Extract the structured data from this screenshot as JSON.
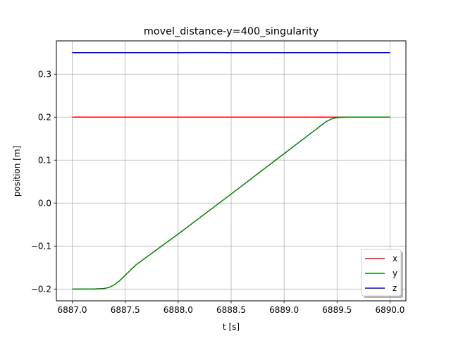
{
  "chart_data": {
    "type": "line",
    "title": "movel_distance-y=400_singularity",
    "xlabel": "t [s]",
    "ylabel": "position [m]",
    "xlim": [
      6886.85,
      6890.15
    ],
    "ylim": [
      -0.2275,
      0.3775
    ],
    "xticks": [
      6887.0,
      6887.5,
      6888.0,
      6888.5,
      6889.0,
      6889.5,
      6890.0
    ],
    "xtick_labels": [
      "6887.0",
      "6887.5",
      "6888.0",
      "6888.5",
      "6889.0",
      "6889.5",
      "6890.0"
    ],
    "yticks": [
      -0.2,
      -0.1,
      0.0,
      0.1,
      0.2,
      0.3
    ],
    "ytick_labels": [
      "−0.2",
      "−0.1",
      "0.0",
      "0.1",
      "0.2",
      "0.3"
    ],
    "grid": true,
    "legend_position": "lower right",
    "series": [
      {
        "name": "x",
        "color": "#ff0000",
        "x": [
          6887.0,
          6887.5,
          6888.0,
          6888.5,
          6889.0,
          6889.5,
          6890.0
        ],
        "y": [
          0.2,
          0.2,
          0.2,
          0.2,
          0.2,
          0.2,
          0.2
        ]
      },
      {
        "name": "y",
        "color": "#008000",
        "x": [
          6887.0,
          6887.2,
          6887.3,
          6887.35,
          6887.4,
          6887.45,
          6887.5,
          6887.55,
          6887.6,
          6888.0,
          6888.5,
          6889.0,
          6889.25,
          6889.3,
          6889.35,
          6889.4,
          6889.45,
          6889.5,
          6889.6,
          6890.0
        ],
        "y": [
          -0.2,
          -0.2,
          -0.199,
          -0.196,
          -0.19,
          -0.18,
          -0.168,
          -0.156,
          -0.144,
          -0.072,
          0.021,
          0.115,
          0.162,
          0.171,
          0.181,
          0.19,
          0.196,
          0.199,
          0.2,
          0.2
        ]
      },
      {
        "name": "z",
        "color": "#0000ff",
        "x": [
          6887.0,
          6887.5,
          6888.0,
          6888.25,
          6888.5,
          6889.0,
          6889.5,
          6890.0
        ],
        "y": [
          0.35,
          0.35,
          0.3501,
          0.3502,
          0.3501,
          0.35,
          0.35,
          0.35
        ]
      }
    ]
  }
}
